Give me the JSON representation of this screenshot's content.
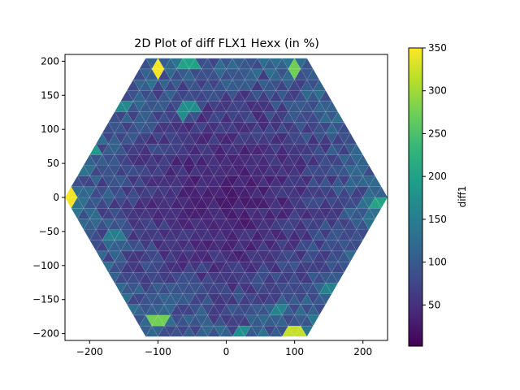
{
  "chart_data": {
    "type": "heatmap",
    "title": "2D Plot of diff FLX1 Hexx (in %)",
    "xlabel": "",
    "ylabel": "",
    "xlim": [
      -236,
      236
    ],
    "ylim": [
      -210,
      210
    ],
    "x_ticks": [
      -200,
      -100,
      0,
      100,
      200
    ],
    "y_ticks": [
      -200,
      -150,
      -100,
      -50,
      0,
      50,
      100,
      150,
      200
    ],
    "grid": false,
    "colormap": "viridis",
    "colorbar": {
      "label": "diff1",
      "range": [
        2,
        350
      ],
      "ticks": [
        50,
        100,
        150,
        200,
        250,
        300,
        350
      ]
    },
    "mesh": {
      "shape": "hexagon of triangles",
      "radius": 236,
      "rings": 13,
      "baseline_range": [
        15,
        130
      ]
    },
    "hot_cells": [
      {
        "x": -236,
        "y": 0,
        "value": 345
      },
      {
        "x": 220,
        "y": -9,
        "value": 205
      },
      {
        "x": -100,
        "y": 188,
        "value": 345
      },
      {
        "x": 100,
        "y": 188,
        "value": 275
      },
      {
        "x": -100,
        "y": -177,
        "value": 275
      },
      {
        "x": 100,
        "y": -197,
        "value": 320
      },
      {
        "x": -55,
        "y": 192,
        "value": 200
      },
      {
        "x": -195,
        "y": 72,
        "value": 190
      },
      {
        "x": -165,
        "y": -55,
        "value": 150
      },
      {
        "x": 150,
        "y": -135,
        "value": 155
      },
      {
        "x": 25,
        "y": -200,
        "value": 175
      },
      {
        "x": -55,
        "y": 127,
        "value": 175
      },
      {
        "x": 75,
        "y": -165,
        "value": 160
      },
      {
        "x": -155,
        "y": 140,
        "value": 165
      }
    ]
  }
}
